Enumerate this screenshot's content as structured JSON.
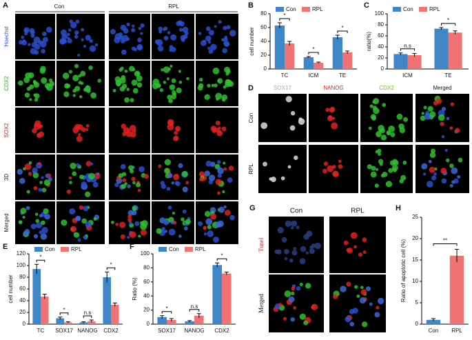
{
  "figure": {
    "letters": [
      "A",
      "B",
      "C",
      "D",
      "E",
      "F",
      "G",
      "H"
    ],
    "A": {
      "columns": [
        "Con",
        "RPL"
      ],
      "rows": [
        "Hoechst",
        "CDX2",
        "SOX2",
        "3D",
        "Merged"
      ]
    },
    "D": {
      "columns": [
        "SOX17",
        "NANOG",
        "CDX2",
        "Merged"
      ],
      "rows": [
        "Con",
        "RPL"
      ]
    },
    "G": {
      "columns": [
        "Con",
        "RPL"
      ],
      "rows": [
        "Tunel",
        "Merged"
      ]
    }
  },
  "chart_data": [
    {
      "type": "bar",
      "ylabel": "cell number",
      "categories": [
        "TC",
        "ICM",
        "TE"
      ],
      "series": [
        {
          "name": "Con",
          "color": "#3f86c8",
          "values": [
            63,
            17,
            46
          ],
          "errors": [
            4,
            1,
            3
          ]
        },
        {
          "name": "RPL",
          "color": "#f17272",
          "values": [
            37,
            9,
            24
          ],
          "errors": [
            3,
            1,
            2
          ]
        }
      ],
      "annotations": [
        "*",
        "*",
        "*"
      ],
      "ylim": [
        0,
        80
      ],
      "yticks": [
        0,
        20,
        40,
        60,
        80
      ]
    },
    {
      "type": "bar",
      "ylabel": "ratio(%)",
      "categories": [
        "ICM",
        "TE"
      ],
      "series": [
        {
          "name": "Con",
          "color": "#3f86c8",
          "values": [
            27,
            73
          ],
          "errors": [
            2,
            2
          ]
        },
        {
          "name": "RPL",
          "color": "#f17272",
          "values": [
            25,
            66
          ],
          "errors": [
            3,
            3
          ]
        }
      ],
      "annotations": [
        "n.s",
        "*"
      ],
      "ylim": [
        0,
        100
      ],
      "yticks": [
        0,
        20,
        40,
        60,
        80,
        100
      ]
    },
    {
      "type": "bar",
      "ylabel": "cell number",
      "categories": [
        "TC",
        "SOX17",
        "NANOG",
        "CDX2"
      ],
      "series": [
        {
          "name": "Con",
          "color": "#3f86c8",
          "values": [
            94,
            10,
            3,
            80
          ],
          "errors": [
            8,
            2,
            1,
            9
          ]
        },
        {
          "name": "RPL",
          "color": "#f17272",
          "values": [
            47,
            3,
            5,
            33
          ],
          "errors": [
            4,
            1,
            2,
            3
          ]
        }
      ],
      "annotations": [
        "*",
        "*",
        "n.s",
        "*"
      ],
      "ylim": [
        0,
        120
      ],
      "yticks": [
        0,
        20,
        40,
        60,
        80,
        100,
        120
      ]
    },
    {
      "type": "bar",
      "ylabel": "Ratio (%)",
      "categories": [
        "SOX17",
        "NANOG",
        "CDX2"
      ],
      "series": [
        {
          "name": "Con",
          "color": "#3f86c8",
          "values": [
            10,
            4,
            84
          ],
          "errors": [
            2,
            1,
            3
          ]
        },
        {
          "name": "RPL",
          "color": "#f17272",
          "values": [
            6,
            12,
            72
          ],
          "errors": [
            2,
            3,
            2
          ]
        }
      ],
      "annotations": [
        "*",
        "n.s",
        "*"
      ],
      "ylim": [
        0,
        100
      ],
      "yticks": [
        0,
        20,
        40,
        60,
        80,
        100
      ]
    },
    {
      "type": "bar",
      "ylabel": "Ratio of apoptotic cell (%)",
      "categories": [
        "Con",
        "RPL"
      ],
      "values": [
        1,
        16
      ],
      "errors": [
        0.3,
        1.5
      ],
      "colors": [
        "#3f86c8",
        "#f17272"
      ],
      "annotations": [
        "**"
      ],
      "ylim": [
        0,
        25
      ],
      "yticks": [
        0,
        5,
        10,
        15,
        20,
        25
      ]
    }
  ]
}
